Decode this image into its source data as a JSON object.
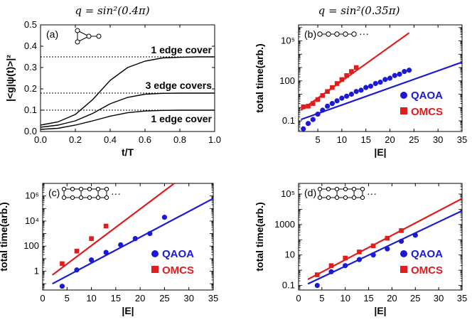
{
  "headers": [
    "q = sin²(0.4π)",
    "q = sin²(0.35π)"
  ],
  "colors": {
    "qaoa": "#1a1ad6",
    "omcs": "#e01c1c",
    "axis": "#000000"
  },
  "chart_data": [
    {
      "id": "a",
      "type": "line",
      "panel_label": "(a)",
      "xlabel": "t/T",
      "ylabel": "|<g|ψ(t)>|²",
      "xlim": [
        0,
        1
      ],
      "ylim": [
        0,
        0.5
      ],
      "xticks": [
        0.0,
        0.2,
        0.4,
        0.6,
        0.8,
        1.0
      ],
      "yticks": [
        0.0,
        0.1,
        0.2,
        0.3,
        0.4,
        0.5
      ],
      "inset_icon": "triangle-graph-icon",
      "asymptotes": [
        0.35,
        0.18,
        0.1
      ],
      "annotations": [
        "1 edge cover",
        "3 edge covers",
        "1 edge cover"
      ],
      "series": [
        {
          "x": [
            0,
            0.1,
            0.2,
            0.3,
            0.4,
            0.5,
            0.6,
            0.7,
            0.8,
            0.9,
            1.0
          ],
          "y": [
            0.03,
            0.045,
            0.08,
            0.15,
            0.24,
            0.3,
            0.33,
            0.345,
            0.348,
            0.35,
            0.35
          ]
        },
        {
          "x": [
            0,
            0.1,
            0.2,
            0.3,
            0.4,
            0.5,
            0.6,
            0.7,
            0.8,
            0.9,
            1.0
          ],
          "y": [
            0.02,
            0.03,
            0.05,
            0.085,
            0.13,
            0.16,
            0.175,
            0.179,
            0.18,
            0.18,
            0.18
          ]
        },
        {
          "x": [
            0,
            0.1,
            0.2,
            0.3,
            0.4,
            0.5,
            0.6,
            0.7,
            0.8,
            0.9,
            1.0
          ],
          "y": [
            0.01,
            0.015,
            0.03,
            0.05,
            0.072,
            0.088,
            0.096,
            0.099,
            0.1,
            0.1,
            0.1
          ]
        }
      ]
    },
    {
      "id": "b",
      "type": "scatter",
      "panel_label": "(b)",
      "xlabel": "|E|",
      "ylabel": "total time(arb.)",
      "log_y": true,
      "xlim": [
        1,
        35
      ],
      "ylim_log10": [
        -1.8,
        6.2
      ],
      "xticks": [
        5,
        10,
        15,
        20,
        25,
        30,
        35
      ],
      "yticks": [
        {
          "log": -1,
          "label": "0.1"
        },
        {
          "log": 2,
          "label": "100"
        },
        {
          "log": 5,
          "label": "10⁵"
        }
      ],
      "inset_icon": "chain-graph-icon",
      "legend": [
        "QAOA",
        "OMCS"
      ],
      "series": [
        {
          "name": "QAOA",
          "x": [
            2,
            3,
            4,
            5,
            6,
            7,
            8,
            9,
            10,
            11,
            12,
            13,
            14,
            15,
            16,
            17,
            18,
            19,
            20,
            21,
            22,
            23,
            24
          ],
          "y_log10": [
            -1.6,
            -1.2,
            -0.9,
            -0.5,
            -0.2,
            0.1,
            0.3,
            0.5,
            0.7,
            0.85,
            1.0,
            1.2,
            1.3,
            1.5,
            1.6,
            1.8,
            1.9,
            2.1,
            2.2,
            2.4,
            2.5,
            2.7,
            2.8
          ]
        },
        {
          "name": "OMCS",
          "x": [
            2,
            3,
            4,
            5,
            6,
            7,
            8,
            9,
            10,
            11,
            12,
            13
          ],
          "y_log10": [
            0.05,
            0.1,
            0.3,
            0.6,
            0.9,
            1.2,
            1.5,
            1.8,
            2.1,
            2.4,
            2.7,
            3.0
          ]
        }
      ],
      "fits": [
        {
          "name": "QAOA",
          "x": [
            1.5,
            35
          ],
          "y_log10": [
            -0.9,
            3.4
          ]
        },
        {
          "name": "OMCS",
          "x": [
            1.5,
            24
          ],
          "y_log10": [
            -0.2,
            5.6
          ]
        }
      ]
    },
    {
      "id": "c",
      "type": "scatter",
      "panel_label": "(c)",
      "xlabel": "|E|",
      "ylabel": "total time(arb.)",
      "log_y": true,
      "xlim": [
        0,
        35
      ],
      "ylim_log10": [
        -1.5,
        7.0
      ],
      "xticks": [
        0,
        5,
        10,
        15,
        20,
        25,
        30,
        35
      ],
      "yticks": [
        {
          "log": 0,
          "label": "1"
        },
        {
          "log": 2,
          "label": "100"
        },
        {
          "log": 4,
          "label": "10⁴"
        },
        {
          "log": 6,
          "label": "10⁶"
        }
      ],
      "inset_icon": "ladder-graph-icon",
      "legend": [
        "QAOA",
        "OMCS"
      ],
      "series": [
        {
          "name": "QAOA",
          "x": [
            4,
            7,
            10,
            13,
            16,
            19,
            22,
            25
          ],
          "y_log10": [
            -1.2,
            0.1,
            0.9,
            1.5,
            2.1,
            2.6,
            3.0,
            4.3
          ]
        },
        {
          "name": "OMCS",
          "x": [
            4,
            7,
            10,
            13
          ],
          "y_log10": [
            0.6,
            1.6,
            2.6,
            3.6
          ]
        }
      ],
      "fits": [
        {
          "name": "QAOA",
          "x": [
            2,
            35
          ],
          "y_log10": [
            -1.0,
            5.8
          ]
        },
        {
          "name": "OMCS",
          "x": [
            2,
            27
          ],
          "y_log10": [
            -0.3,
            7.0
          ]
        }
      ]
    },
    {
      "id": "d",
      "type": "scatter",
      "panel_label": "(d)",
      "xlabel": "|E|",
      "ylabel": "total time(arb.)",
      "log_y": true,
      "xlim": [
        0,
        35
      ],
      "ylim_log10": [
        -1.3,
        5.7
      ],
      "xticks": [
        0,
        5,
        10,
        15,
        20,
        25,
        30,
        35
      ],
      "yticks": [
        {
          "log": -1,
          "label": "0.1"
        },
        {
          "log": 1,
          "label": "10"
        },
        {
          "log": 3,
          "label": "1000"
        },
        {
          "log": 5,
          "label": "10⁵"
        }
      ],
      "inset_icon": "ladder-graph-icon",
      "legend": [
        "QAOA",
        "OMCS"
      ],
      "series": [
        {
          "name": "QAOA",
          "x": [
            4,
            7,
            10,
            13,
            16,
            19,
            22,
            25
          ],
          "y_log10": [
            -1.0,
            -0.1,
            0.3,
            0.7,
            1.0,
            1.4,
            1.9,
            2.3
          ]
        },
        {
          "name": "OMCS",
          "x": [
            4,
            7,
            10,
            13,
            16,
            19,
            22
          ],
          "y_log10": [
            -0.3,
            0.3,
            0.8,
            1.2,
            1.6,
            2.1,
            2.6
          ]
        }
      ],
      "fits": [
        {
          "name": "QAOA",
          "x": [
            2,
            35
          ],
          "y_log10": [
            -0.9,
            3.9
          ]
        },
        {
          "name": "OMCS",
          "x": [
            2,
            35
          ],
          "y_log10": [
            -0.6,
            4.7
          ]
        }
      ]
    }
  ]
}
